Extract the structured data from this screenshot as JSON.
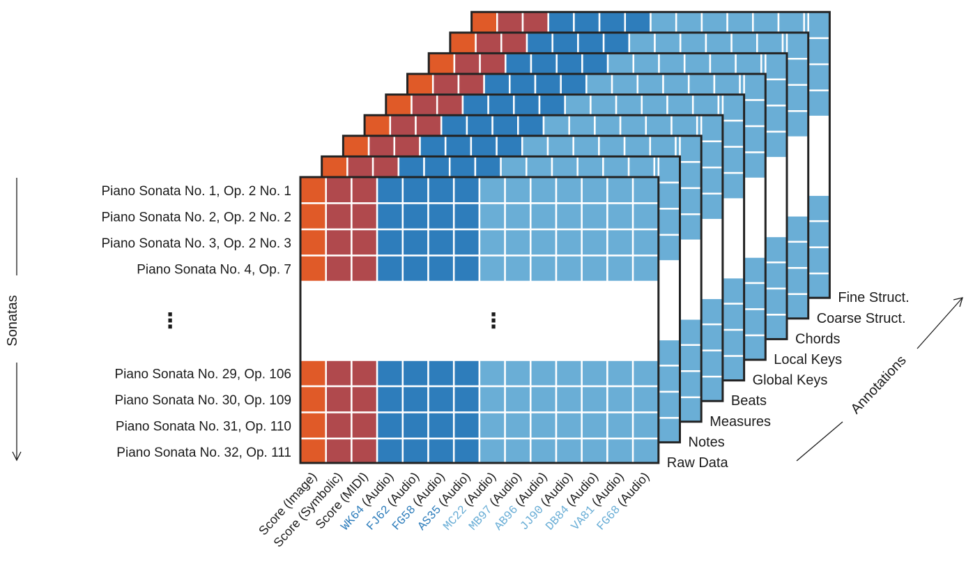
{
  "annotation_layers": [
    "Raw Data",
    "Notes",
    "Measures",
    "Beats",
    "Global Keys",
    "Local Keys",
    "Chords",
    "Coarse Struct.",
    "Fine Struct."
  ],
  "axis_labels": {
    "vertical": "Sonatas",
    "depth": "Annotations"
  },
  "ellipsis": "⋮",
  "sonatas": {
    "top": [
      "Piano Sonata No. 1, Op. 2 No. 1",
      "Piano Sonata No. 2, Op. 2 No. 2",
      "Piano Sonata No. 3, Op. 2 No. 3",
      "Piano Sonata No. 4, Op. 7"
    ],
    "bottom": [
      "Piano Sonata No. 29, Op. 106",
      "Piano Sonata No. 30, Op. 109",
      "Piano Sonata No. 31, Op. 110",
      "Piano Sonata No. 32, Op. 111"
    ]
  },
  "versions": [
    {
      "label": "Score (Image)",
      "group": "score_image",
      "mono": false
    },
    {
      "label": "Score (Symbolic)",
      "group": "score",
      "mono": false
    },
    {
      "label": "Score (MIDI)",
      "group": "score",
      "mono": false
    },
    {
      "code": "WK64",
      "suffix": " (Audio)",
      "group": "audio_dark",
      "mono": true
    },
    {
      "code": "FJ62",
      "suffix": " (Audio)",
      "group": "audio_dark",
      "mono": true
    },
    {
      "code": "FG58",
      "suffix": " (Audio)",
      "group": "audio_dark",
      "mono": true
    },
    {
      "code": "AS35",
      "suffix": " (Audio)",
      "group": "audio_dark",
      "mono": true
    },
    {
      "code": "MC22",
      "suffix": " (Audio)",
      "group": "audio_light",
      "mono": true
    },
    {
      "code": "MB97",
      "suffix": " (Audio)",
      "group": "audio_light",
      "mono": true
    },
    {
      "code": "AB96",
      "suffix": " (Audio)",
      "group": "audio_light",
      "mono": true
    },
    {
      "code": "JJ90",
      "suffix": " (Audio)",
      "group": "audio_light",
      "mono": true
    },
    {
      "code": "DB84",
      "suffix": " (Audio)",
      "group": "audio_light",
      "mono": true
    },
    {
      "code": "VA81",
      "suffix": " (Audio)",
      "group": "audio_light",
      "mono": true
    },
    {
      "code": "FG68",
      "suffix": " (Audio)",
      "group": "audio_light",
      "mono": true
    }
  ],
  "colors": {
    "score_image": "#e05a28",
    "score": "#b0494d",
    "audio_dark": "#2e7dbb",
    "audio_light": "#6aaed6",
    "frame": "#222222",
    "divider": "#ffffff",
    "text": "#1a1a1a"
  }
}
